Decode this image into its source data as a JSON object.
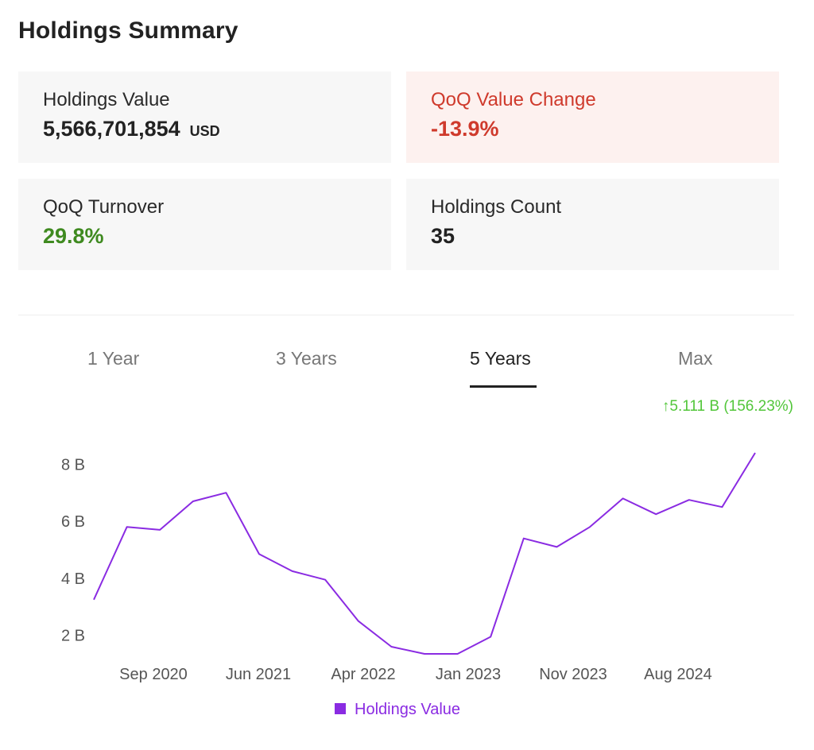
{
  "summary": {
    "title": "Holdings Summary",
    "cards": [
      {
        "label": "Holdings Value",
        "value": "5,566,701,854",
        "unit": "USD"
      },
      {
        "label": "QoQ Value Change",
        "value": "-13.9%"
      },
      {
        "label": "QoQ Turnover",
        "value": "29.8%"
      },
      {
        "label": "Holdings Count",
        "value": "35"
      }
    ]
  },
  "tabs": [
    {
      "label": "1 Year"
    },
    {
      "label": "3 Years"
    },
    {
      "label": "5 Years",
      "active": true
    },
    {
      "label": "Max"
    }
  ],
  "change": {
    "text": "↑5.111 B (156.23%)",
    "color": "#52c63a"
  },
  "colors": {
    "series": "#8a2be2",
    "negative": "#cf3a2c",
    "positive": "#3f8a20"
  },
  "chart_data": {
    "type": "line",
    "series": [
      {
        "name": "Holdings Value",
        "x": [
          "2020-03",
          "2020-06",
          "2020-09",
          "2020-12",
          "2021-03",
          "2021-06",
          "2021-09",
          "2021-12",
          "2022-03",
          "2022-06",
          "2022-09",
          "2022-12",
          "2023-03",
          "2023-06",
          "2023-09",
          "2023-12",
          "2024-03",
          "2024-06",
          "2024-09",
          "2024-12",
          "2025-03"
        ],
        "values": [
          3.25,
          5.8,
          5.7,
          6.7,
          7.0,
          4.85,
          4.25,
          3.95,
          2.5,
          1.6,
          1.35,
          1.35,
          1.95,
          5.4,
          5.1,
          5.8,
          6.8,
          6.25,
          6.75,
          6.5,
          8.4
        ]
      }
    ],
    "x_ticks": [
      "Sep 2020",
      "Jun 2021",
      "Apr 2022",
      "Jan 2023",
      "Nov 2023",
      "Aug 2024"
    ],
    "y_ticks": [
      "2 B",
      "4 B",
      "6 B",
      "8 B"
    ],
    "y_tick_values": [
      2,
      4,
      6,
      8
    ],
    "ylim": [
      1.35,
      8.4
    ],
    "grid": false,
    "legend": "bottom-center",
    "legend_label": "Holdings Value"
  }
}
